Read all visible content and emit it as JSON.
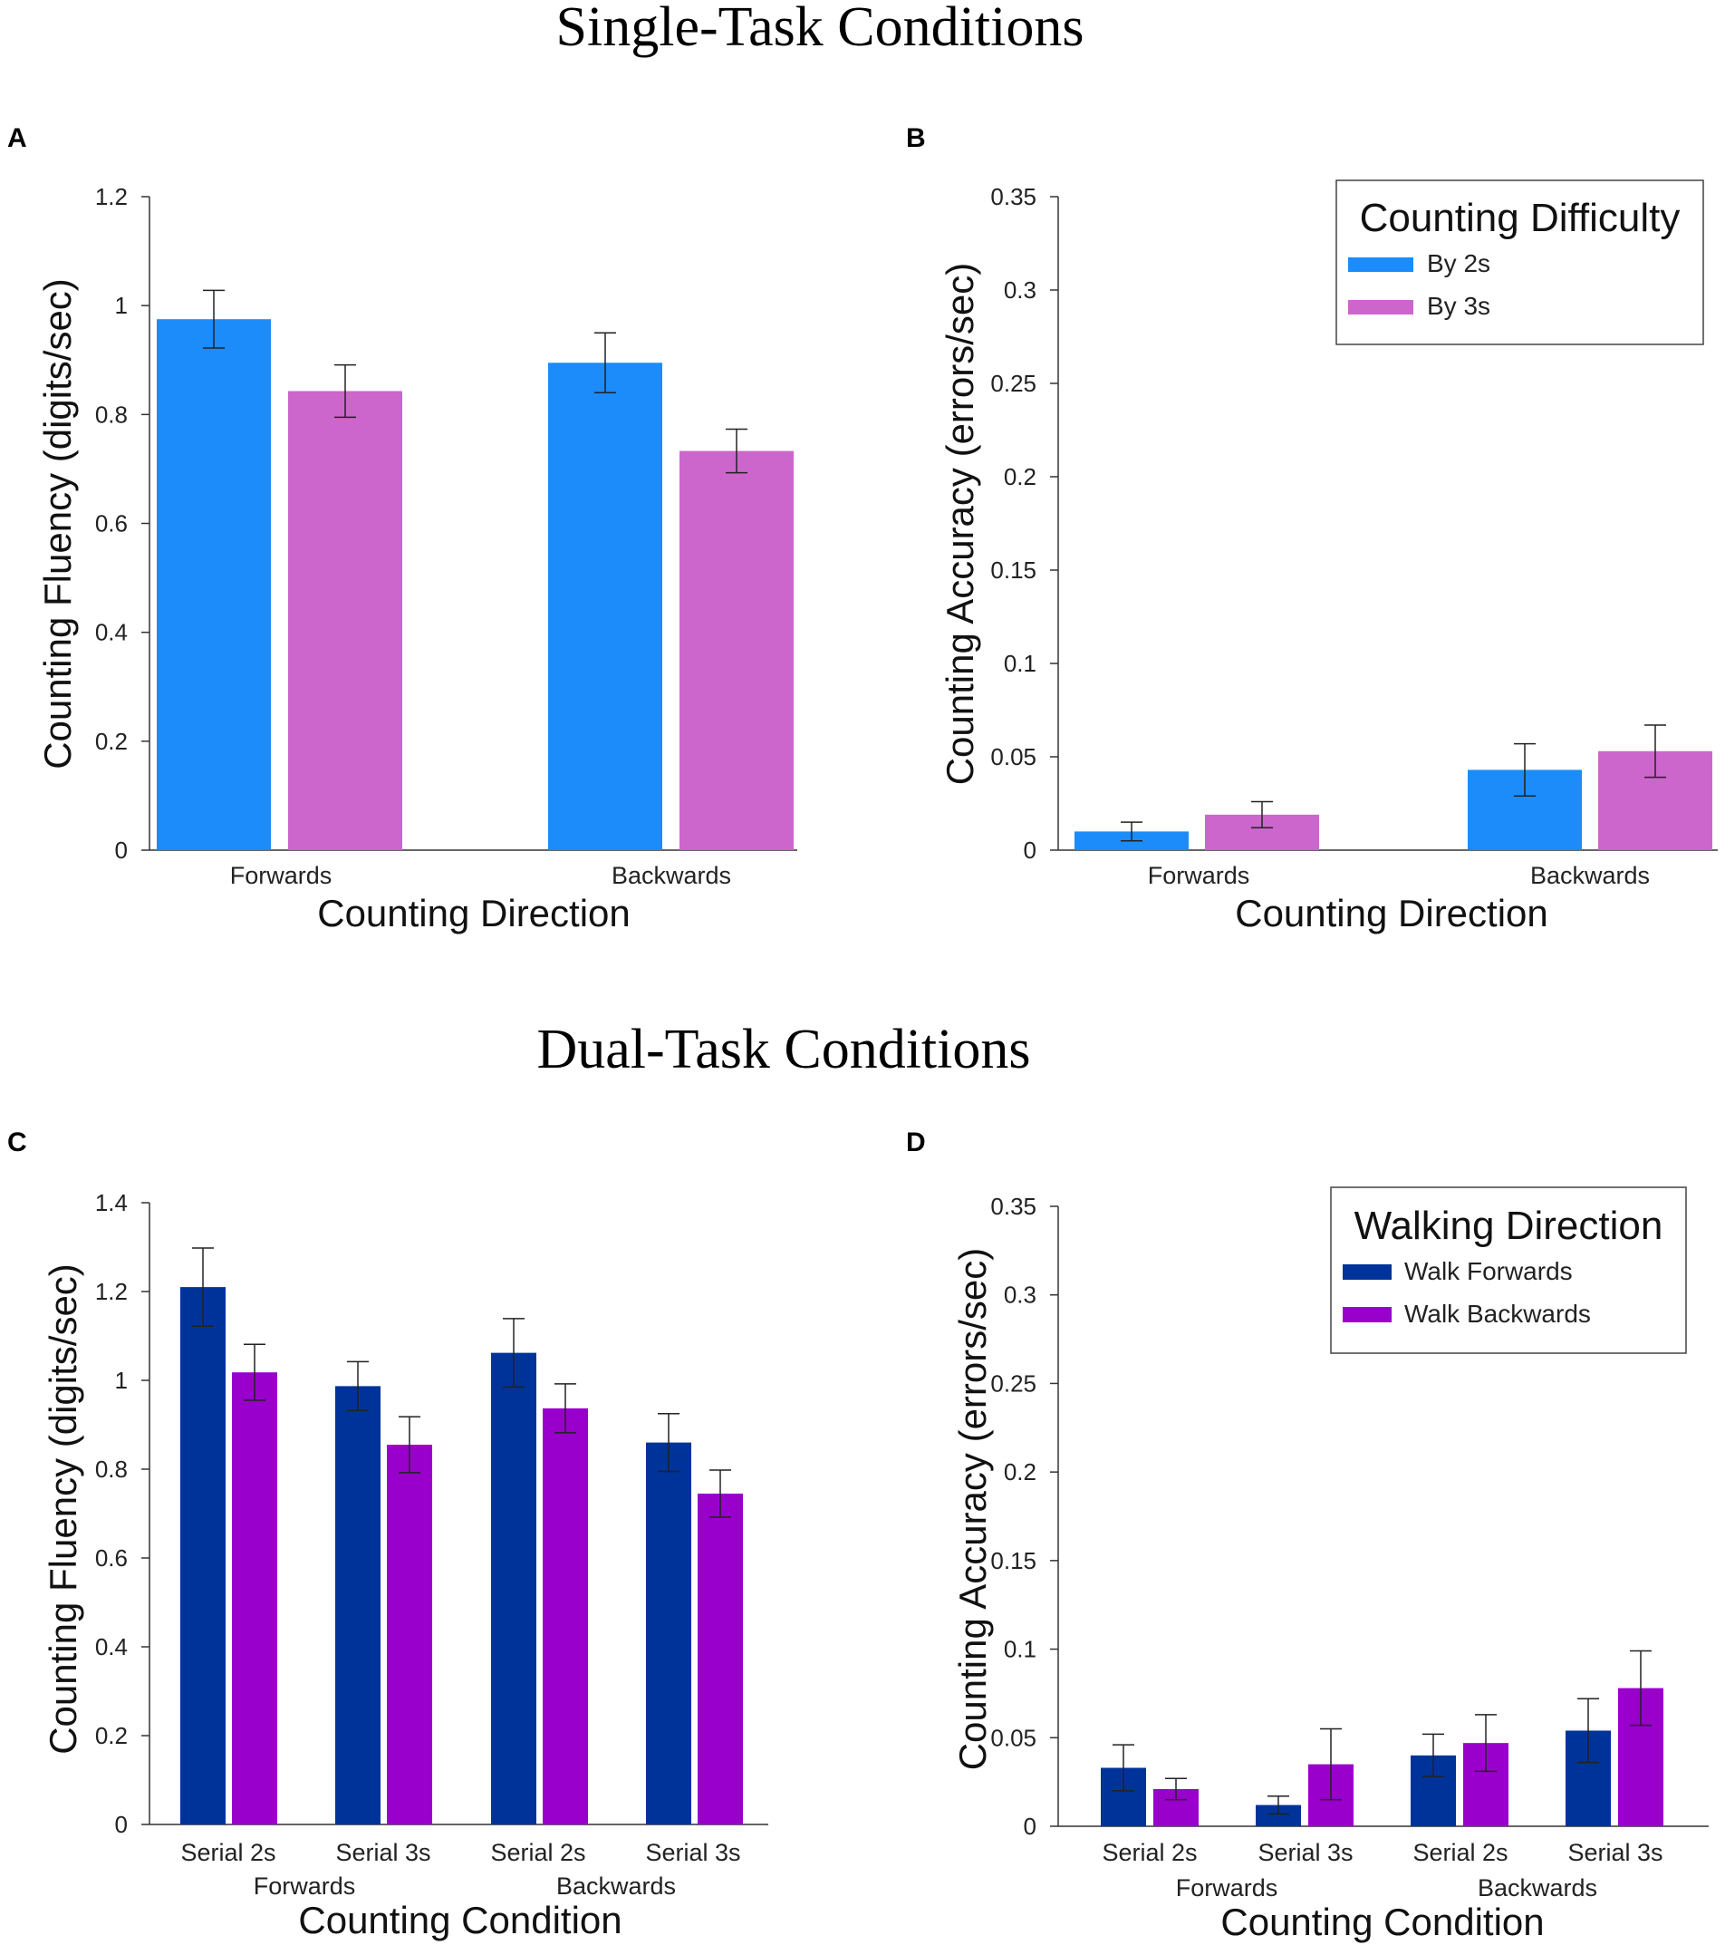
{
  "section_titles": {
    "single": "Single-Task Conditions",
    "dual": "Dual-Task Conditions"
  },
  "colors": {
    "by2": "#1B8CFA",
    "by3": "#CC66CC",
    "walk_forwards": "#003399",
    "walk_backwards": "#9900CC",
    "axis": "#333333"
  },
  "chart_data": [
    {
      "panel": "A",
      "type": "bar",
      "categories": [
        "Forwards",
        "Backwards"
      ],
      "series": [
        {
          "name": "By 2s",
          "color": "#1B8CFA",
          "values": [
            0.975,
            0.895
          ],
          "errors": [
            0.053,
            0.055
          ]
        },
        {
          "name": "By 3s",
          "color": "#CC66CC",
          "values": [
            0.843,
            0.733
          ],
          "errors": [
            0.048,
            0.04
          ]
        }
      ],
      "xlabel": "Counting Direction",
      "ylabel": "Counting Fluency (digits/sec)",
      "ylim": [
        0,
        1.2
      ],
      "yticks": [
        "0",
        "0.2",
        "0.4",
        "0.6",
        "0.8",
        "1",
        "1.2"
      ]
    },
    {
      "panel": "B",
      "type": "bar",
      "categories": [
        "Forwards",
        "Backwards"
      ],
      "series": [
        {
          "name": "By 2s",
          "color": "#1B8CFA",
          "values": [
            0.01,
            0.043
          ],
          "errors": [
            0.005,
            0.014
          ]
        },
        {
          "name": "By 3s",
          "color": "#CC66CC",
          "values": [
            0.019,
            0.053
          ],
          "errors": [
            0.007,
            0.014
          ]
        }
      ],
      "xlabel": "Counting Direction",
      "ylabel": "Counting Accuracy (errors/sec)",
      "ylim": [
        0,
        0.35
      ],
      "yticks": [
        "0",
        "0.05",
        "0.1",
        "0.15",
        "0.2",
        "0.25",
        "0.3",
        "0.35"
      ],
      "legend": {
        "title": "Counting Difficulty",
        "items": [
          "By 2s",
          "By 3s"
        ],
        "position": "top-right"
      }
    },
    {
      "panel": "C",
      "type": "bar",
      "categories": [
        "Serial 2s",
        "Serial 3s",
        "Serial 2s",
        "Serial 3s"
      ],
      "groups": [
        "Forwards",
        "Backwards"
      ],
      "series": [
        {
          "name": "Walk Forwards",
          "color": "#003399",
          "values": [
            1.21,
            0.987,
            1.062,
            0.86
          ],
          "errors": [
            0.088,
            0.055,
            0.077,
            0.065
          ]
        },
        {
          "name": "Walk Backwards",
          "color": "#9900CC",
          "values": [
            1.018,
            0.855,
            0.937,
            0.745
          ],
          "errors": [
            0.063,
            0.063,
            0.055,
            0.053
          ]
        }
      ],
      "xlabel": "Counting Condition",
      "ylabel": "Counting Fluency (digits/sec)",
      "ylim": [
        0,
        1.4
      ],
      "yticks": [
        "0",
        "0.2",
        "0.4",
        "0.6",
        "0.8",
        "1",
        "1.2",
        "1.4"
      ]
    },
    {
      "panel": "D",
      "type": "bar",
      "categories": [
        "Serial 2s",
        "Serial 3s",
        "Serial 2s",
        "Serial 3s"
      ],
      "groups": [
        "Forwards",
        "Backwards"
      ],
      "series": [
        {
          "name": "Walk Forwards",
          "color": "#003399",
          "values": [
            0.033,
            0.012,
            0.04,
            0.054
          ],
          "errors": [
            0.013,
            0.005,
            0.012,
            0.018
          ]
        },
        {
          "name": "Walk Backwards",
          "color": "#9900CC",
          "values": [
            0.021,
            0.035,
            0.047,
            0.078
          ],
          "errors": [
            0.006,
            0.02,
            0.016,
            0.021
          ]
        }
      ],
      "xlabel": "Counting Condition",
      "ylabel": "Counting Accuracy (errors/sec)",
      "ylim": [
        0,
        0.35
      ],
      "yticks": [
        "0",
        "0.05",
        "0.1",
        "0.15",
        "0.2",
        "0.25",
        "0.3",
        "0.35"
      ],
      "legend": {
        "title": "Walking Direction",
        "items": [
          "Walk Forwards",
          "Walk Backwards"
        ],
        "position": "top-right"
      }
    }
  ]
}
